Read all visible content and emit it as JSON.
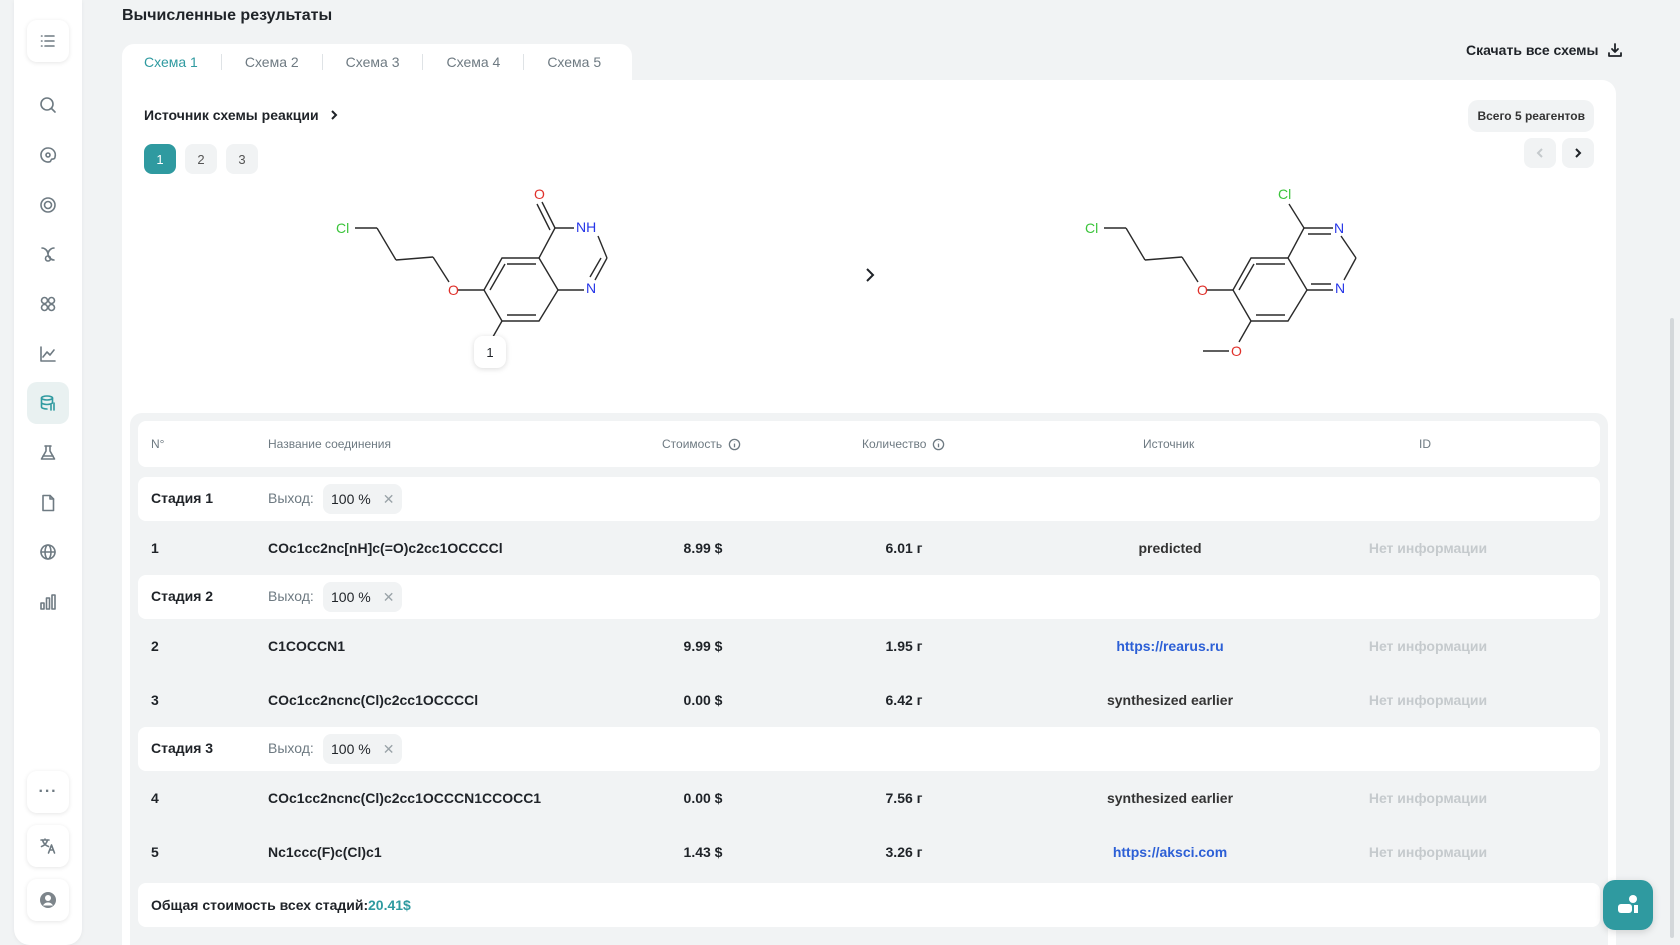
{
  "page": {
    "title": "Вычисленные результаты",
    "download_all": "Скачать все схемы"
  },
  "sidebar": {
    "icons": [
      "list-icon",
      "search-icon",
      "palette-icon",
      "target-icon",
      "molecule-icon",
      "atom-icon",
      "chart-icon",
      "database-icon",
      "flask-icon",
      "document-icon",
      "globe-icon",
      "stats-icon"
    ],
    "more": "···",
    "active": "database-icon"
  },
  "tabs": [
    "Схема 1",
    "Схема 2",
    "Схема 3",
    "Схема 4",
    "Схема 5"
  ],
  "active_tab": "Схема 1",
  "card": {
    "source_label": "Источник схемы реакции",
    "total_reagents": "Всего 5 реагентов",
    "pages": [
      "1",
      "2",
      "3"
    ],
    "active_page": "1"
  },
  "reaction": {
    "atom_badge": "1",
    "left_atoms": {
      "cl": "Cl",
      "o_ether": "O",
      "o_carbonyl": "O",
      "nh": "NH",
      "n": "N"
    },
    "right_atoms": {
      "cl_chain": "Cl",
      "cl_ring": "Cl",
      "o_ether": "O",
      "o_methoxy": "O",
      "n1": "N",
      "n2": "N"
    }
  },
  "table": {
    "headers": {
      "num": "N°",
      "name": "Название соединения",
      "cost": "Стоимость",
      "qty": "Количество",
      "source": "Источник",
      "id": "ID"
    },
    "yield_label": "Выход:",
    "stages": [
      {
        "name": "Стадия 1",
        "yield": "100 %",
        "rows": [
          {
            "num": "1",
            "name": "COc1cc2nc[nH]c(=O)c2cc1OCCCCl",
            "cost": "8.99 $",
            "qty": "6.01 г",
            "source": "predicted",
            "link": false,
            "id": "Нет информации"
          }
        ]
      },
      {
        "name": "Стадия 2",
        "yield": "100 %",
        "rows": [
          {
            "num": "2",
            "name": "C1COCCN1",
            "cost": "9.99 $",
            "qty": "1.95 г",
            "source": "https://rearus.ru",
            "link": true,
            "id": "Нет информации"
          },
          {
            "num": "3",
            "name": "COc1cc2ncnc(Cl)c2cc1OCCCCl",
            "cost": "0.00 $",
            "qty": "6.42 г",
            "source": "synthesized earlier",
            "link": false,
            "id": "Нет информации"
          }
        ]
      },
      {
        "name": "Стадия 3",
        "yield": "100 %",
        "rows": [
          {
            "num": "4",
            "name": "COc1cc2ncnc(Cl)c2cc1OCCCN1CCOCC1",
            "cost": "0.00 $",
            "qty": "7.56 г",
            "source": "synthesized earlier",
            "link": false,
            "id": "Нет информации"
          },
          {
            "num": "5",
            "name": "Nc1ccc(F)c(Cl)c1",
            "cost": "1.43 $",
            "qty": "3.26 г",
            "source": "https://aksci.com",
            "link": true,
            "id": "Нет информации"
          }
        ]
      }
    ],
    "total_label": "Общая стоимость всех стадий:",
    "total_value": "20.41$"
  },
  "colors": {
    "accent": "#2f9aa0",
    "link": "#2c5fd6",
    "oxygen": "#e0302a",
    "nitrogen": "#2535e8",
    "chlorine": "#3cc43c"
  }
}
